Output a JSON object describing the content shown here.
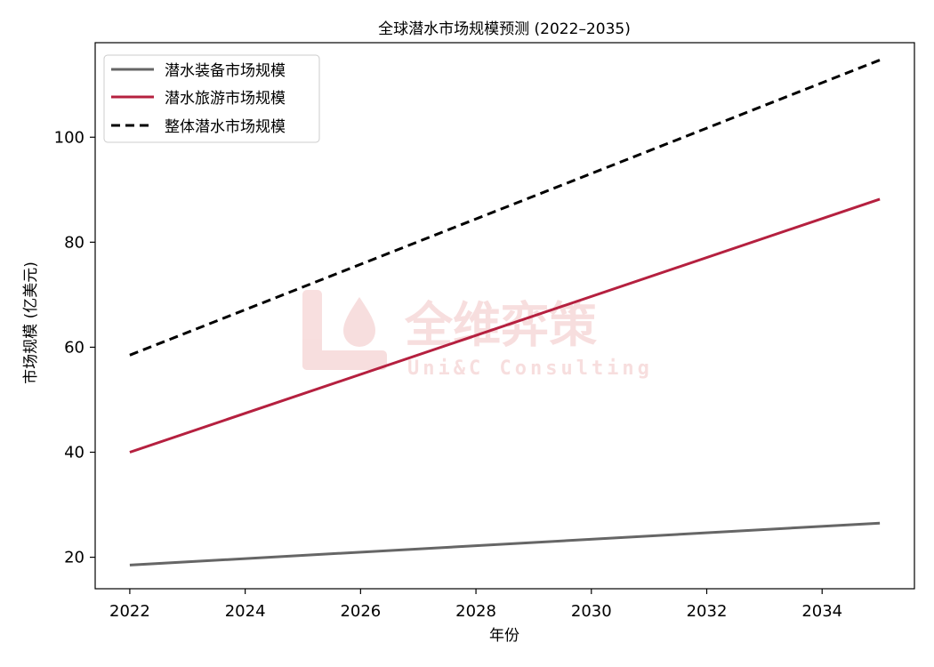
{
  "chart_data": {
    "type": "line",
    "title": "全球潜水市场规模预测 (2022–2035)",
    "xlabel": "年份",
    "ylabel": "市场规模 (亿美元)",
    "xlim": [
      2021.4,
      2035.6
    ],
    "ylim": [
      14,
      118
    ],
    "x_ticks": [
      2022,
      2024,
      2026,
      2028,
      2030,
      2032,
      2034
    ],
    "y_ticks": [
      20,
      40,
      60,
      80,
      100
    ],
    "x": [
      2022,
      2035
    ],
    "series": [
      {
        "name": "潜水装备市场规模",
        "values": [
          18.5,
          26.5
        ],
        "color": "#666666",
        "style": "solid"
      },
      {
        "name": "潜水旅游市场规模",
        "values": [
          40.0,
          88.2
        ],
        "color": "#b5203f",
        "style": "solid"
      },
      {
        "name": "整体潜水市场规模",
        "values": [
          58.5,
          114.7
        ],
        "color": "#000000",
        "style": "dashed"
      }
    ],
    "legend_position": "top-left",
    "grid": false
  },
  "watermark": {
    "text_cn": "全维弈策",
    "text_en": "Uni&C Consulting",
    "color": "#f3c9c9"
  }
}
